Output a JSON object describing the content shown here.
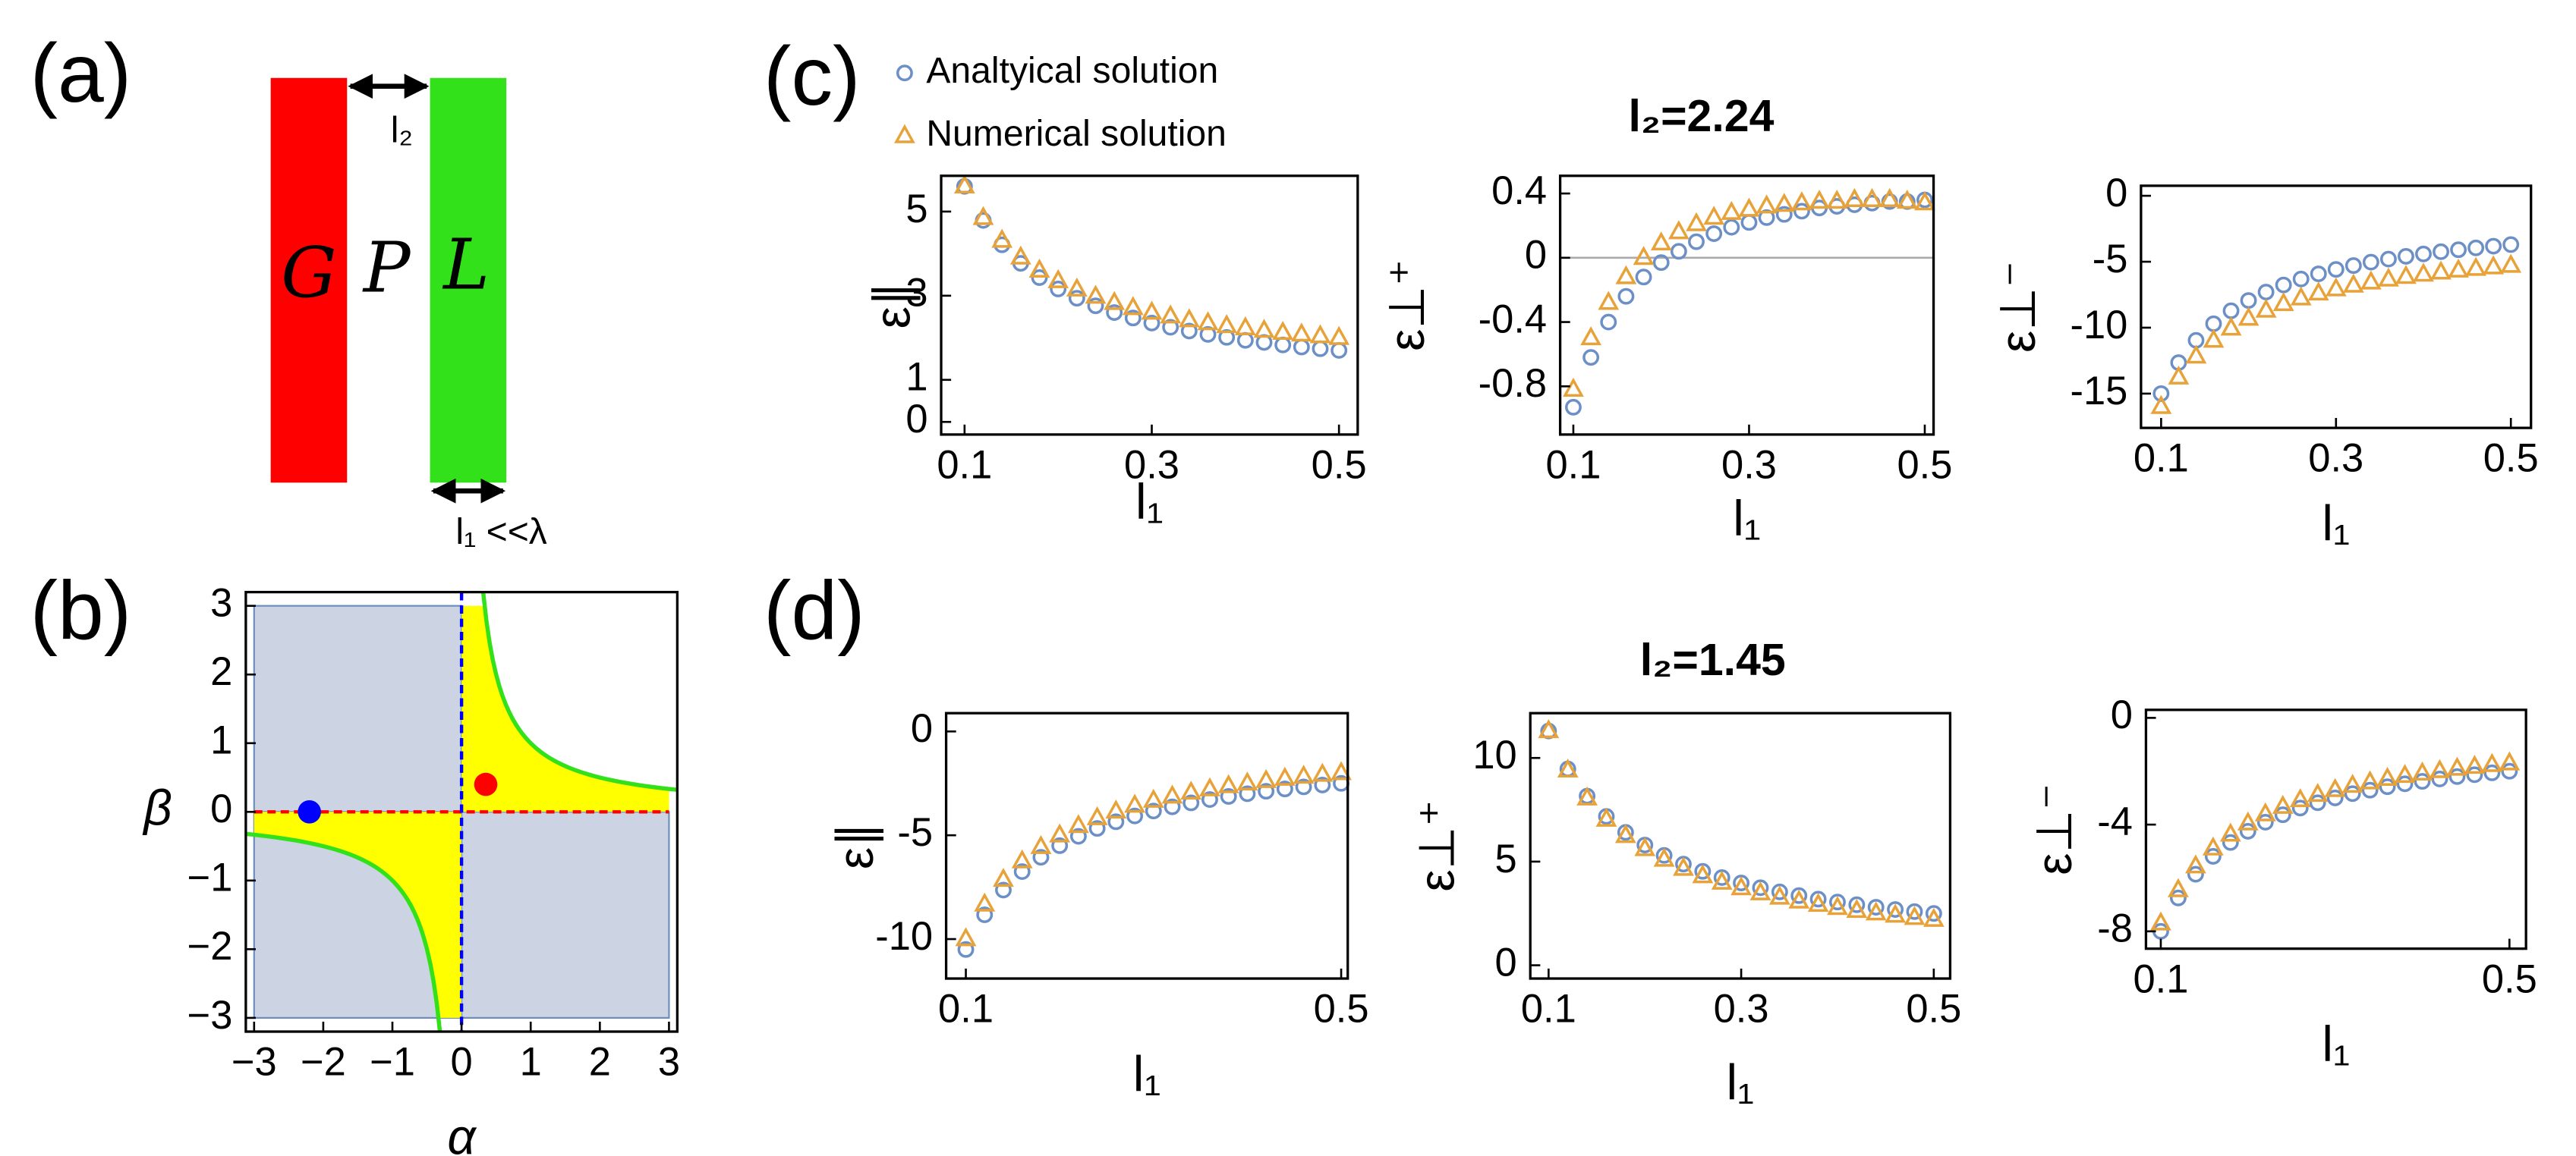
{
  "diagram": {
    "label": "(a)",
    "left": "G",
    "middle": "P",
    "right": "L",
    "gap": "l₂",
    "width": "l₁ <<λ"
  },
  "chart_data": [
    {
      "type": "region",
      "panel_label": "(b)",
      "xlabel": "α",
      "ylabel": "β",
      "xlim": [
        -3.12,
        3.12
      ],
      "ylim": [
        -3.2,
        3.2
      ],
      "xticks": [
        {
          "value": -3,
          "label": "−3"
        },
        {
          "value": -2,
          "label": "−2"
        },
        {
          "value": -1,
          "label": "−1"
        },
        0,
        1,
        2,
        3
      ],
      "yticks": [
        {
          "value": -3,
          "label": "−3"
        },
        {
          "value": -2,
          "label": "−2"
        },
        {
          "value": -1,
          "label": "−1"
        },
        0,
        1,
        2,
        3
      ],
      "points": [
        {
          "x": -2.2,
          "y": 0,
          "color": "#0000ff"
        },
        {
          "x": 0.35,
          "y": 0.4,
          "color": "#ff0000"
        }
      ]
    },
    {
      "type": "scatter",
      "panel_label": "(c)",
      "legend": "above",
      "xlabel": "l₁",
      "ylabel": "ε∥",
      "x": [
        0.1,
        0.12,
        0.14,
        0.16,
        0.18,
        0.2,
        0.22,
        0.24,
        0.26,
        0.28,
        0.3,
        0.32,
        0.34,
        0.36,
        0.38,
        0.4,
        0.42,
        0.44,
        0.46,
        0.48,
        0.5
      ],
      "series": [
        {
          "name": "Analtyical solution",
          "color": "#6b8fc6",
          "marker": "circle",
          "values": [
            5.6,
            4.79,
            4.21,
            3.77,
            3.43,
            3.16,
            2.94,
            2.76,
            2.6,
            2.47,
            2.35,
            2.25,
            2.16,
            2.08,
            2.01,
            1.94,
            1.89,
            1.83,
            1.78,
            1.74,
            1.7
          ]
        },
        {
          "name": "Numerical solution",
          "color": "#e8a23a",
          "marker": "triangle",
          "values": [
            5.6,
            4.85,
            4.31,
            3.91,
            3.6,
            3.35,
            3.15,
            2.98,
            2.83,
            2.71,
            2.6,
            2.51,
            2.42,
            2.35,
            2.28,
            2.23,
            2.17,
            2.12,
            2.08,
            2.04,
            2.0
          ]
        }
      ],
      "xlim": [
        0.075,
        0.52
      ],
      "ylim": [
        -0.3,
        5.85
      ],
      "xticks": [
        0.1,
        0.3,
        0.5
      ],
      "yticks": [
        0,
        1,
        3,
        5
      ]
    },
    {
      "type": "scatter",
      "title": "l₂=2.24",
      "xlabel": "l₁",
      "ylabel": "ε⊥⁺",
      "zero_line": true,
      "x": [
        0.1,
        0.12,
        0.14,
        0.16,
        0.18,
        0.2,
        0.22,
        0.24,
        0.26,
        0.28,
        0.3,
        0.32,
        0.34,
        0.36,
        0.38,
        0.4,
        0.42,
        0.44,
        0.46,
        0.48,
        0.5
      ],
      "series": [
        {
          "color": "#6b8fc6",
          "marker": "circle",
          "values": [
            -0.93,
            -0.62,
            -0.4,
            -0.24,
            -0.12,
            -0.03,
            0.04,
            0.1,
            0.15,
            0.19,
            0.22,
            0.25,
            0.27,
            0.29,
            0.31,
            0.32,
            0.33,
            0.34,
            0.35,
            0.35,
            0.36
          ]
        },
        {
          "color": "#e8a23a",
          "marker": "triangle",
          "values": [
            -0.82,
            -0.5,
            -0.28,
            -0.12,
            0.0,
            0.09,
            0.16,
            0.21,
            0.25,
            0.28,
            0.3,
            0.32,
            0.33,
            0.34,
            0.35,
            0.35,
            0.36,
            0.36,
            0.36,
            0.35,
            0.34
          ]
        }
      ],
      "xlim": [
        0.085,
        0.51
      ],
      "ylim": [
        -1.1,
        0.51
      ],
      "xticks": [
        0.1,
        0.3,
        0.5
      ],
      "yticks": [
        -0.8,
        -0.4,
        0,
        0.4
      ]
    },
    {
      "type": "scatter",
      "xlabel": "l₁",
      "ylabel": "ε⊥⁻",
      "x": [
        0.1,
        0.12,
        0.14,
        0.16,
        0.18,
        0.2,
        0.22,
        0.24,
        0.26,
        0.28,
        0.3,
        0.32,
        0.34,
        0.36,
        0.38,
        0.4,
        0.42,
        0.44,
        0.46,
        0.48,
        0.5
      ],
      "series": [
        {
          "color": "#6b8fc6",
          "marker": "circle",
          "values": [
            -15.0,
            -12.65,
            -10.96,
            -9.7,
            -8.72,
            -7.94,
            -7.3,
            -6.76,
            -6.31,
            -5.92,
            -5.58,
            -5.29,
            -5.03,
            -4.8,
            -4.59,
            -4.41,
            -4.24,
            -4.09,
            -3.95,
            -3.82,
            -3.7
          ]
        },
        {
          "color": "#e8a23a",
          "marker": "triangle",
          "values": [
            -16.0,
            -13.77,
            -12.18,
            -10.98,
            -10.06,
            -9.31,
            -8.7,
            -8.2,
            -7.77,
            -7.4,
            -7.08,
            -6.8,
            -6.56,
            -6.34,
            -6.14,
            -5.97,
            -5.81,
            -5.66,
            -5.53,
            -5.41,
            -5.3
          ]
        }
      ],
      "xlim": [
        0.077,
        0.523
      ],
      "ylim": [
        -17.6,
        0.76
      ],
      "xticks": [
        0.1,
        0.3,
        0.5
      ],
      "yticks": [
        -15,
        -10,
        -5,
        0
      ]
    },
    {
      "type": "scatter",
      "panel_label": "(d)",
      "xlabel": "l₁",
      "ylabel": "ε∥",
      "x": [
        0.1,
        0.12,
        0.14,
        0.16,
        0.18,
        0.2,
        0.22,
        0.24,
        0.26,
        0.28,
        0.3,
        0.32,
        0.34,
        0.36,
        0.38,
        0.4,
        0.42,
        0.44,
        0.46,
        0.48,
        0.5
      ],
      "series": [
        {
          "color": "#6b8fc6",
          "marker": "circle",
          "values": [
            -10.5,
            -8.83,
            -7.64,
            -6.75,
            -6.06,
            -5.5,
            -5.05,
            -4.67,
            -4.35,
            -4.07,
            -3.83,
            -3.63,
            -3.44,
            -3.28,
            -3.13,
            -3.0,
            -2.88,
            -2.77,
            -2.67,
            -2.58,
            -2.5
          ]
        },
        {
          "color": "#e8a23a",
          "marker": "triangle",
          "values": [
            -10.0,
            -8.33,
            -7.14,
            -6.25,
            -5.56,
            -5.0,
            -4.55,
            -4.17,
            -3.85,
            -3.57,
            -3.33,
            -3.13,
            -2.94,
            -2.78,
            -2.63,
            -2.5,
            -2.38,
            -2.27,
            -2.17,
            -2.08,
            -2.0
          ]
        }
      ],
      "xlim": [
        0.079,
        0.507
      ],
      "ylim": [
        -11.9,
        0.88
      ],
      "xticks": [
        0.1,
        0.5
      ],
      "yticks": [
        -10,
        -5,
        0
      ]
    },
    {
      "type": "scatter",
      "title": "l₂=1.45",
      "xlabel": "l₁",
      "ylabel": "ε⊥⁺",
      "x": [
        0.1,
        0.12,
        0.14,
        0.16,
        0.18,
        0.2,
        0.22,
        0.24,
        0.26,
        0.28,
        0.3,
        0.32,
        0.34,
        0.36,
        0.38,
        0.4,
        0.42,
        0.44,
        0.46,
        0.48,
        0.5
      ],
      "series": [
        {
          "color": "#6b8fc6",
          "marker": "circle",
          "values": [
            11.3,
            9.47,
            8.16,
            7.18,
            6.41,
            5.8,
            5.3,
            4.88,
            4.53,
            4.23,
            3.97,
            3.74,
            3.54,
            3.36,
            3.19,
            3.05,
            2.92,
            2.8,
            2.69,
            2.59,
            2.5
          ]
        },
        {
          "color": "#e8a23a",
          "marker": "triangle",
          "values": [
            11.3,
            9.4,
            8.05,
            7.03,
            6.24,
            5.61,
            5.1,
            4.66,
            4.3,
            3.99,
            3.72,
            3.48,
            3.27,
            3.08,
            2.92,
            2.77,
            2.63,
            2.51,
            2.4,
            2.29,
            2.2
          ]
        }
      ],
      "xlim": [
        0.081,
        0.517
      ],
      "ylim": [
        -0.64,
        12.16
      ],
      "xticks": [
        0.1,
        0.3,
        0.5
      ],
      "yticks": [
        0,
        5,
        10
      ]
    },
    {
      "type": "scatter",
      "xlabel": "l₁",
      "ylabel": "ε⊥⁻",
      "x": [
        0.1,
        0.12,
        0.14,
        0.16,
        0.18,
        0.2,
        0.22,
        0.24,
        0.26,
        0.28,
        0.3,
        0.32,
        0.34,
        0.36,
        0.38,
        0.4,
        0.42,
        0.44,
        0.46,
        0.48,
        0.5
      ],
      "series": [
        {
          "color": "#6b8fc6",
          "marker": "circle",
          "values": [
            -8.0,
            -6.75,
            -5.86,
            -5.19,
            -4.67,
            -4.25,
            -3.91,
            -3.63,
            -3.38,
            -3.18,
            -3.0,
            -2.84,
            -2.71,
            -2.58,
            -2.47,
            -2.38,
            -2.29,
            -2.2,
            -2.13,
            -2.06,
            -2.0
          ]
        },
        {
          "color": "#e8a23a",
          "marker": "triangle",
          "values": [
            -7.7,
            -6.45,
            -5.56,
            -4.89,
            -4.37,
            -3.95,
            -3.61,
            -3.33,
            -3.08,
            -2.88,
            -2.7,
            -2.54,
            -2.41,
            -2.28,
            -2.17,
            -2.08,
            -1.99,
            -1.9,
            -1.83,
            -1.76,
            -1.7
          ]
        }
      ],
      "xlim": [
        0.083,
        0.519
      ],
      "ylim": [
        -8.65,
        0.3
      ],
      "xticks": [
        0.1,
        0.5
      ],
      "yticks": [
        -8,
        -4,
        0
      ]
    }
  ]
}
